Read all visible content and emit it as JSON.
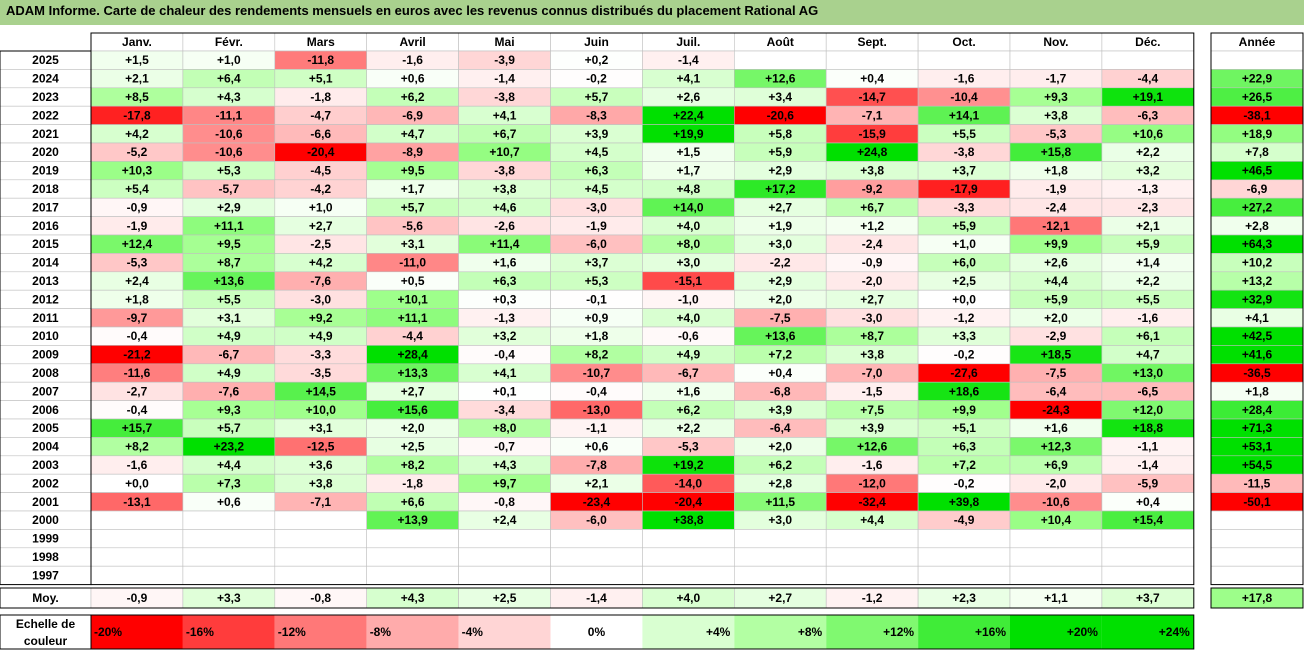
{
  "title": "ADAM Informe. Carte de chaleur des rendements mensuels en euros avec les revenus connus distribués du placement Rational AG",
  "colors": {
    "title_bg": "#a9d18e",
    "strong_red": "#ff0000",
    "strong_green": "#00e000"
  },
  "chart_data": {
    "type": "heatmap",
    "months": [
      "Janv.",
      "Févr.",
      "Mars",
      "Avril",
      "Mai",
      "Juin",
      "Juil.",
      "Août",
      "Sept.",
      "Oct.",
      "Nov.",
      "Déc."
    ],
    "annual_header": "Année",
    "years": [
      "2025",
      "2024",
      "2023",
      "2022",
      "2021",
      "2020",
      "2019",
      "2018",
      "2017",
      "2016",
      "2015",
      "2014",
      "2013",
      "2012",
      "2011",
      "2010",
      "2009",
      "2008",
      "2007",
      "2006",
      "2005",
      "2004",
      "2003",
      "2002",
      "2001",
      "2000",
      "1999",
      "1998",
      "1997"
    ],
    "values": [
      [
        1.5,
        1.0,
        -11.8,
        -1.6,
        -3.9,
        0.2,
        -1.4,
        null,
        null,
        null,
        null,
        null
      ],
      [
        2.1,
        6.4,
        5.1,
        0.6,
        -1.4,
        -0.2,
        4.1,
        12.6,
        0.4,
        -1.6,
        -1.7,
        -4.4
      ],
      [
        8.5,
        4.3,
        -1.8,
        6.2,
        -3.8,
        5.7,
        2.6,
        3.4,
        -14.7,
        -10.4,
        9.3,
        19.1
      ],
      [
        -17.8,
        -11.1,
        -4.7,
        -6.9,
        4.1,
        -8.3,
        22.4,
        -20.6,
        -7.1,
        14.1,
        3.8,
        -6.3
      ],
      [
        4.2,
        -10.6,
        -6.6,
        4.7,
        6.7,
        3.9,
        19.9,
        5.8,
        -15.9,
        5.5,
        -5.3,
        10.6
      ],
      [
        -5.2,
        -10.6,
        -20.4,
        -8.9,
        10.7,
        4.5,
        1.5,
        5.9,
        24.8,
        -3.8,
        15.8,
        2.2
      ],
      [
        10.3,
        5.3,
        -4.5,
        9.5,
        -3.8,
        6.3,
        1.7,
        2.9,
        3.8,
        3.7,
        1.8,
        3.2
      ],
      [
        5.4,
        -5.7,
        -4.2,
        1.7,
        3.8,
        4.5,
        4.8,
        17.2,
        -9.2,
        -17.9,
        -1.9,
        -1.3
      ],
      [
        -0.9,
        2.9,
        1.0,
        5.7,
        4.6,
        -3.0,
        14.0,
        2.7,
        6.7,
        -3.3,
        -2.4,
        -2.3
      ],
      [
        -1.9,
        11.1,
        2.7,
        -5.6,
        -2.6,
        -1.9,
        4.0,
        1.9,
        1.2,
        5.9,
        -12.1,
        2.1
      ],
      [
        12.4,
        9.5,
        -2.5,
        3.1,
        11.4,
        -6.0,
        8.0,
        3.0,
        -2.4,
        1.0,
        9.9,
        5.9
      ],
      [
        -5.3,
        8.7,
        4.2,
        -11.0,
        1.6,
        3.7,
        3.0,
        -2.2,
        -0.9,
        6.0,
        2.6,
        1.4
      ],
      [
        2.4,
        13.6,
        -7.6,
        0.5,
        6.3,
        5.3,
        -15.1,
        2.9,
        -2.0,
        2.5,
        4.4,
        2.2
      ],
      [
        1.8,
        5.5,
        -3.0,
        10.1,
        0.3,
        -0.1,
        -1.0,
        2.0,
        2.7,
        0.0,
        5.9,
        5.5
      ],
      [
        -9.7,
        3.1,
        9.2,
        11.1,
        -1.3,
        0.9,
        4.0,
        -7.5,
        -3.0,
        -1.2,
        2.0,
        -1.6
      ],
      [
        -0.4,
        4.9,
        4.9,
        -4.4,
        3.2,
        1.8,
        -0.6,
        13.6,
        8.7,
        3.3,
        -2.9,
        6.1
      ],
      [
        -21.2,
        -6.7,
        -3.3,
        28.4,
        -0.4,
        8.2,
        4.9,
        7.2,
        3.8,
        -0.2,
        18.5,
        4.7
      ],
      [
        -11.6,
        4.9,
        -3.5,
        13.3,
        4.1,
        -10.7,
        -6.7,
        0.4,
        -7.0,
        -27.6,
        -7.5,
        13.0
      ],
      [
        -2.7,
        -7.6,
        14.5,
        2.7,
        0.1,
        -0.4,
        1.6,
        -6.8,
        -1.5,
        18.6,
        -6.4,
        -6.5
      ],
      [
        -0.4,
        9.3,
        10.0,
        15.6,
        -3.4,
        -13.0,
        6.2,
        3.9,
        7.5,
        9.9,
        -24.3,
        12.0
      ],
      [
        15.7,
        5.7,
        3.1,
        2.0,
        8.0,
        -1.1,
        2.2,
        -6.4,
        3.9,
        5.1,
        1.6,
        18.8
      ],
      [
        8.2,
        23.2,
        -12.5,
        2.5,
        -0.7,
        0.6,
        -5.3,
        2.0,
        12.6,
        6.3,
        12.3,
        -1.1
      ],
      [
        -1.6,
        4.4,
        3.6,
        8.2,
        4.3,
        -7.8,
        19.2,
        6.2,
        -1.6,
        7.2,
        6.9,
        -1.4
      ],
      [
        0.0,
        7.3,
        3.8,
        -1.8,
        9.7,
        2.1,
        -14.0,
        2.8,
        -12.0,
        -0.2,
        -2.0,
        -5.9
      ],
      [
        -13.1,
        0.6,
        -7.1,
        6.6,
        -0.8,
        -23.4,
        -20.4,
        11.5,
        -32.4,
        39.8,
        -10.6,
        0.4
      ],
      [
        null,
        null,
        null,
        13.9,
        2.4,
        -6.0,
        38.8,
        3.0,
        4.4,
        -4.9,
        10.4,
        15.4
      ],
      [
        null,
        null,
        null,
        null,
        null,
        null,
        null,
        null,
        null,
        null,
        null,
        null
      ],
      [
        null,
        null,
        null,
        null,
        null,
        null,
        null,
        null,
        null,
        null,
        null,
        null
      ],
      [
        null,
        null,
        null,
        null,
        null,
        null,
        null,
        null,
        null,
        null,
        null,
        null
      ]
    ],
    "annual": [
      null,
      22.9,
      26.5,
      -38.1,
      18.9,
      7.8,
      46.5,
      -6.9,
      27.2,
      2.8,
      64.3,
      10.2,
      13.2,
      32.9,
      4.1,
      42.5,
      41.6,
      -36.5,
      1.8,
      28.4,
      71.3,
      53.1,
      54.5,
      -11.5,
      -50.1,
      null,
      null,
      null,
      null
    ],
    "average_label": "Moy.",
    "average": [
      -0.9,
      3.3,
      -0.8,
      4.3,
      2.5,
      -1.4,
      4.0,
      2.7,
      -1.2,
      2.3,
      1.1,
      3.7
    ],
    "average_annual": 17.8,
    "scale_label": "Echelle de couleur",
    "scale": [
      "-20%",
      "-16%",
      "-12%",
      "-8%",
      "-4%",
      "0%",
      "+4%",
      "+8%",
      "+12%",
      "+16%",
      "+20%",
      "+24%"
    ],
    "scale_values": [
      -20,
      -16,
      -12,
      -8,
      -4,
      0,
      4,
      8,
      12,
      16,
      20,
      24
    ]
  }
}
